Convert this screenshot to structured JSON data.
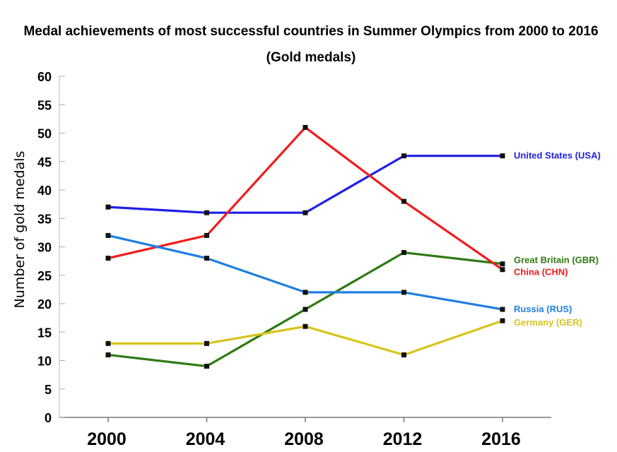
{
  "chart_data": {
    "type": "line",
    "title_line1": "Medal achievements of most successful countries in Summer Olympics from 2000 to 2016",
    "title_line2": "(Gold medals)",
    "xlabel": "",
    "ylabel": "Number of gold medals",
    "categories": [
      "2000",
      "2004",
      "2008",
      "2012",
      "2016"
    ],
    "ylim": [
      0,
      60
    ],
    "yticks": [
      "0",
      "5",
      "10",
      "15",
      "20",
      "25",
      "30",
      "35",
      "40",
      "45",
      "50",
      "55",
      "60"
    ],
    "grid": false,
    "legend_placement": "right-end-labels",
    "series": [
      {
        "name": "United States (USA)",
        "color": "#1f1fe6",
        "values": [
          37,
          36,
          36,
          46,
          46
        ]
      },
      {
        "name": "Great Britain (GBR)",
        "color": "#2e7a12",
        "values": [
          11,
          9,
          19,
          29,
          27
        ]
      },
      {
        "name": "China (CHN)",
        "color": "#f01c1c",
        "values": [
          28,
          32,
          51,
          38,
          26
        ]
      },
      {
        "name": "Russia (RUS)",
        "color": "#1e7fe0",
        "values": [
          32,
          28,
          22,
          22,
          19
        ]
      },
      {
        "name": "Germany (GER)",
        "color": "#d8c41a",
        "values": [
          13,
          13,
          16,
          11,
          17
        ]
      }
    ]
  }
}
